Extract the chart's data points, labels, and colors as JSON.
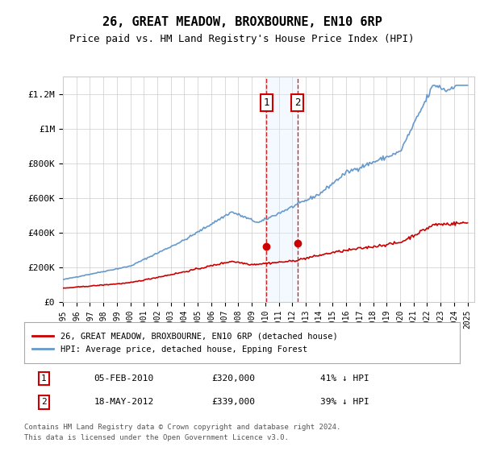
{
  "title": "26, GREAT MEADOW, BROXBOURNE, EN10 6RP",
  "subtitle": "Price paid vs. HM Land Registry's House Price Index (HPI)",
  "title_fontsize": 11,
  "subtitle_fontsize": 9,
  "ylabel_ticks": [
    "£0",
    "£200K",
    "£400K",
    "£600K",
    "£800K",
    "£1M",
    "£1.2M"
  ],
  "ytick_values": [
    0,
    200000,
    400000,
    600000,
    800000,
    1000000,
    1200000
  ],
  "ylim": [
    0,
    1300000
  ],
  "xlim_start": 1995.0,
  "xlim_end": 2025.5,
  "transaction1": {
    "date_num": 2010.09,
    "price": 320000,
    "label": "1",
    "date_str": "05-FEB-2010",
    "pct": "41%"
  },
  "transaction2": {
    "date_num": 2012.38,
    "price": 339000,
    "label": "2",
    "date_str": "18-MAY-2012",
    "pct": "39%"
  },
  "legend_label_red": "26, GREAT MEADOW, BROXBOURNE, EN10 6RP (detached house)",
  "legend_label_blue": "HPI: Average price, detached house, Epping Forest",
  "footer1": "Contains HM Land Registry data © Crown copyright and database right 2024.",
  "footer2": "This data is licensed under the Open Government Licence v3.0.",
  "table_row1": [
    "1",
    "05-FEB-2010",
    "£320,000",
    "41% ↓ HPI"
  ],
  "table_row2": [
    "2",
    "18-MAY-2012",
    "£339,000",
    "39% ↓ HPI"
  ],
  "red_color": "#cc0000",
  "blue_color": "#6699cc",
  "shade_color": "#ddeeff",
  "bg_color": "#ffffff",
  "grid_color": "#cccccc",
  "box_color": "#cc0000"
}
